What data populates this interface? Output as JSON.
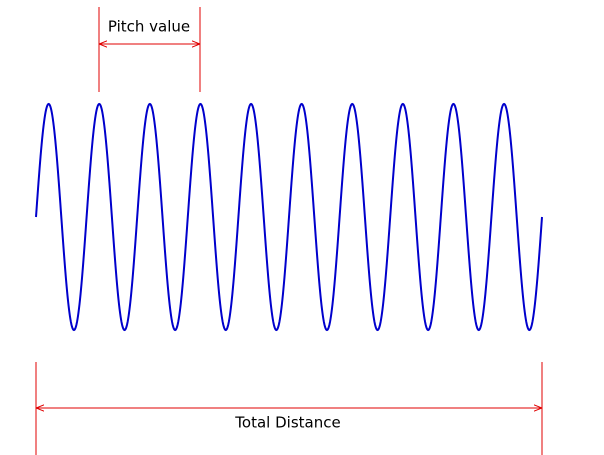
{
  "annotations": {
    "pitch": "Pitch value",
    "total": "Total Distance"
  }
}
